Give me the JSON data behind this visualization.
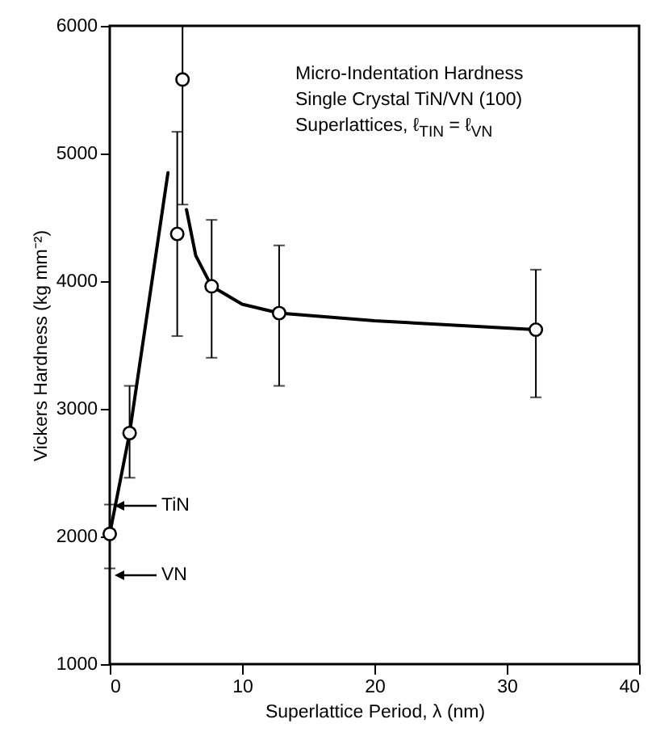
{
  "chart_data": {
    "type": "scatter",
    "xlabel": "Superlattice Period, λ  (nm)",
    "ylabel": "Vickers Hardness  (kg mm⁻²)",
    "xlim": [
      0,
      40
    ],
    "xticks": [
      0,
      10,
      20,
      30,
      40
    ],
    "ylim": [
      1000,
      6000
    ],
    "yticks": [
      1000,
      2000,
      3000,
      4000,
      5000,
      6000
    ],
    "annotations": [
      "Micro-Indentation Hardness",
      "Single Crystal TiN/VN (100)",
      "Superlattices,  ℓ$_{TIN}$ = ℓ$_{VN}$",
      "TiN",
      "VN"
    ],
    "series": [
      {
        "type": "line",
        "x": [
          0,
          1.5,
          4.4
        ],
        "values": [
          2020,
          2810,
          4850
        ],
        "color": "#000000"
      },
      {
        "type": "line",
        "x": [
          5.8,
          6.5,
          7.7,
          10,
          12.8,
          20,
          32.2
        ],
        "values": [
          4560,
          4200,
          3960,
          3820,
          3750,
          3690,
          3620
        ],
        "color": "#000000"
      },
      {
        "marker": "circle",
        "x": [
          0,
          1.5,
          5.1,
          5.5,
          7.7,
          12.8,
          32.2
        ],
        "values": [
          2020,
          2810,
          4370,
          5580,
          3960,
          3750,
          3620
        ],
        "errors": [
          [
            1750,
            2250
          ],
          [
            2460,
            3180
          ],
          [
            3570,
            5170
          ],
          [
            4600,
            6000
          ],
          [
            3400,
            4480
          ],
          [
            3180,
            4280
          ],
          [
            3090,
            4090
          ]
        ],
        "color": "#000000"
      }
    ]
  }
}
